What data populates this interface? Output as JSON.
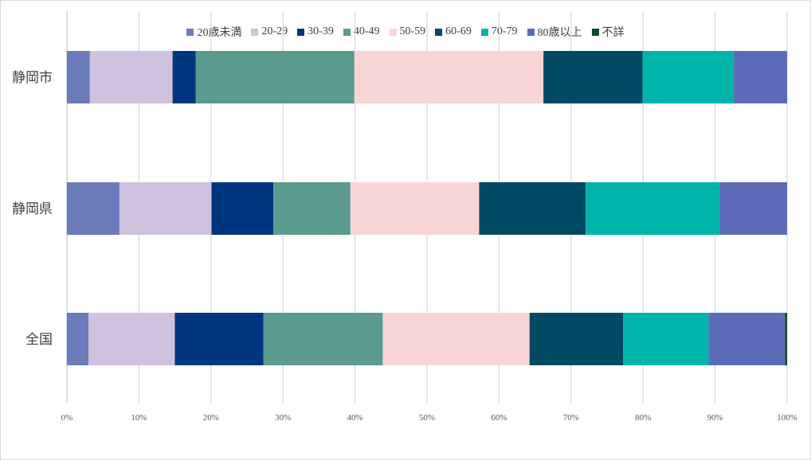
{
  "chart_data": {
    "type": "bar",
    "orientation": "horizontal",
    "stacked": "percent",
    "categories": [
      "静岡市",
      "静岡県",
      "全国"
    ],
    "series": [
      {
        "name": "20歳未満",
        "color": "#6a7cb9",
        "values": [
          3.2,
          7.3,
          3.0
        ]
      },
      {
        "name": "20-29",
        "color": "#d0c1de",
        "values": [
          11.5,
          12.8,
          12.0
        ]
      },
      {
        "name": "30-39",
        "color": "#003580",
        "values": [
          3.2,
          8.6,
          12.3
        ]
      },
      {
        "name": "40-49",
        "color": "#5a9a8f",
        "values": [
          22.1,
          10.7,
          16.6
        ]
      },
      {
        "name": "50-59",
        "color": "#f7d5d5",
        "values": [
          26.3,
          17.9,
          20.4
        ]
      },
      {
        "name": "60-69",
        "color": "#004a63",
        "values": [
          13.8,
          14.8,
          13.0
        ]
      },
      {
        "name": "70-79",
        "color": "#00b4aa",
        "values": [
          12.7,
          18.6,
          11.9
        ]
      },
      {
        "name": "80歳以上",
        "color": "#5b6bb8",
        "values": [
          7.4,
          9.4,
          10.6
        ]
      },
      {
        "name": "不詳",
        "color": "#0f4a23",
        "values": [
          0.0,
          0.0,
          0.3
        ]
      }
    ],
    "xlim": [
      0,
      100
    ],
    "xticks": [
      "0%",
      "10%",
      "20%",
      "30%",
      "40%",
      "50%",
      "60%",
      "70%",
      "80%",
      "90%",
      "100%"
    ],
    "grid": true,
    "legend_position": "top"
  }
}
